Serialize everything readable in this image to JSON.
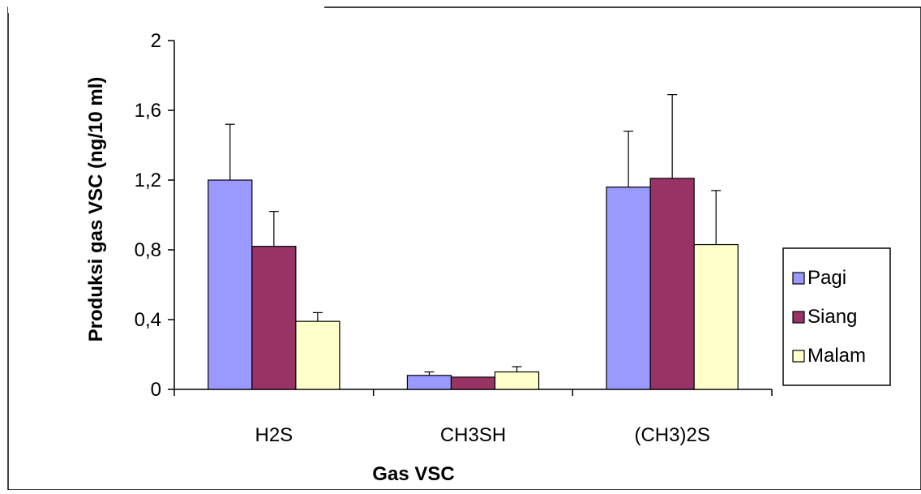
{
  "chart_data": {
    "type": "bar",
    "title": "",
    "xlabel": "Gas VSC",
    "ylabel": "Produksi gas VSC (ng/10 ml)",
    "ylim": [
      0,
      2
    ],
    "yticks": [
      0,
      0.4,
      0.8,
      1.2,
      1.6,
      2
    ],
    "ytick_labels": [
      "0",
      "0,4",
      "0,8",
      "1,2",
      "1,6",
      "2"
    ],
    "categories": [
      "H2S",
      "CH3SH",
      "(CH3)2S"
    ],
    "series": [
      {
        "name": "Pagi",
        "color": "#9999ff",
        "values": [
          1.2,
          0.08,
          1.16
        ],
        "errors": [
          0.32,
          0.02,
          0.32
        ]
      },
      {
        "name": "Siang",
        "color": "#993366",
        "values": [
          0.82,
          0.07,
          1.21
        ],
        "errors": [
          0.2,
          0.0,
          0.48
        ]
      },
      {
        "name": "Malam",
        "color": "#ffffcc",
        "values": [
          0.39,
          0.1,
          0.83
        ],
        "errors": [
          0.05,
          0.03,
          0.31
        ]
      }
    ],
    "grid": false,
    "legend_position": "right",
    "error_bars": true
  }
}
